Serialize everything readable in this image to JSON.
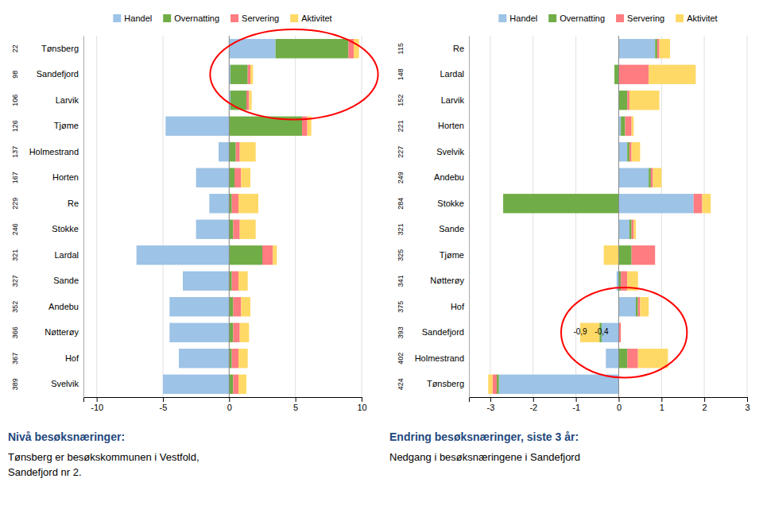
{
  "chart_data": [
    {
      "type": "bar",
      "orientation": "horizontal",
      "stacked": true,
      "grid": true,
      "legend": "top",
      "title": "Nivå besøksnæringer:",
      "subtitle": [
        "Tønsberg er besøkskommunen i Vestfold,",
        "Sandefjord nr 2."
      ],
      "categories": [
        "Tønsberg",
        "Sandefjord",
        "Larvik",
        "Tjøme",
        "Holmestrand",
        "Horten",
        "Re",
        "Stokke",
        "Lardal",
        "Sande",
        "Andebu",
        "Nøtterøy",
        "Hof",
        "Svelvik"
      ],
      "row_labels": [
        "22",
        "98",
        "106",
        "126",
        "137",
        "167",
        "229",
        "246",
        "321",
        "327",
        "352",
        "366",
        "367",
        "389"
      ],
      "series": [
        {
          "name": "Handel",
          "color": "#9DC3E6",
          "values": [
            3.5,
            0.1,
            0.1,
            -4.8,
            -0.8,
            -2.5,
            -1.5,
            -2.5,
            -7.0,
            -3.5,
            -4.5,
            -4.5,
            -3.8,
            -5.0
          ]
        },
        {
          "name": "Overnatting",
          "color": "#70AD47",
          "values": [
            5.5,
            1.3,
            1.2,
            5.5,
            0.5,
            0.4,
            0.2,
            0.3,
            2.5,
            0.2,
            0.3,
            0.3,
            0.2,
            0.3
          ]
        },
        {
          "name": "Servering",
          "color": "#FF7C80",
          "values": [
            0.4,
            0.2,
            0.2,
            0.4,
            0.3,
            0.5,
            0.5,
            0.5,
            0.8,
            0.5,
            0.6,
            0.5,
            0.5,
            0.4
          ]
        },
        {
          "name": "Aktivitet",
          "color": "#FFD966",
          "values": [
            0.4,
            0.2,
            0.2,
            0.3,
            1.2,
            0.7,
            1.5,
            1.2,
            0.3,
            0.7,
            0.7,
            0.7,
            0.7,
            0.6
          ]
        }
      ],
      "xlim": [
        -11,
        10
      ],
      "xticks": [
        -10,
        -5,
        0,
        5,
        10
      ],
      "annotations": [
        {
          "categories": [
            "Tønsberg",
            "Sandefjord",
            "Larvik"
          ],
          "color": "red"
        }
      ]
    },
    {
      "type": "bar",
      "orientation": "horizontal",
      "stacked": true,
      "grid": true,
      "legend": "top",
      "title": "Endring besøksnæringer, siste 3 år:",
      "subtitle": [
        "Nedgang i besøksnæringene i Sandefjord"
      ],
      "categories": [
        "Re",
        "Lardal",
        "Larvik",
        "Horten",
        "Svelvik",
        "Andebu",
        "Stokke",
        "Sande",
        "Tjøme",
        "Nøtterøy",
        "Hof",
        "Sandefjord",
        "Holmestrand",
        "Tønsberg"
      ],
      "row_labels": [
        "115",
        "148",
        "152",
        "221",
        "227",
        "249",
        "284",
        "321",
        "325",
        "341",
        "375",
        "393",
        "402",
        "424"
      ],
      "series": [
        {
          "name": "Handel",
          "color": "#9DC3E6",
          "values": [
            0.85,
            0.0,
            0.0,
            0.05,
            0.2,
            0.7,
            1.75,
            0.25,
            0.0,
            -0.05,
            0.4,
            -0.4,
            -0.3,
            -2.8
          ]
        },
        {
          "name": "Overnatting",
          "color": "#70AD47",
          "values": [
            0.05,
            -0.1,
            0.2,
            0.1,
            0.05,
            0.05,
            -2.7,
            0.05,
            0.3,
            0.05,
            0.05,
            -0.05,
            0.2,
            -0.05
          ]
        },
        {
          "name": "Servering",
          "color": "#FF7C80",
          "values": [
            0.05,
            0.7,
            0.05,
            0.15,
            0.05,
            0.05,
            0.2,
            0.05,
            0.55,
            0.15,
            0.05,
            0.05,
            0.25,
            -0.1
          ]
        },
        {
          "name": "Aktivitet",
          "color": "#FFD966",
          "values": [
            0.25,
            1.1,
            0.7,
            0.05,
            0.2,
            0.2,
            0.2,
            0.05,
            -0.35,
            0.25,
            0.2,
            -0.45,
            0.7,
            -0.1
          ]
        }
      ],
      "xlim": [
        -3.5,
        3.0
      ],
      "xticks": [
        -3,
        -2,
        -1,
        0,
        1,
        2,
        3
      ],
      "annotations": [
        {
          "categories": [
            "Hof",
            "Sandefjord",
            "Holmestrand"
          ],
          "color": "red"
        },
        {
          "text": "-0,4",
          "x": -0.4,
          "category": "Sandefjord"
        },
        {
          "text": "-0,9",
          "x": -0.9,
          "category": "Sandefjord"
        }
      ]
    }
  ]
}
